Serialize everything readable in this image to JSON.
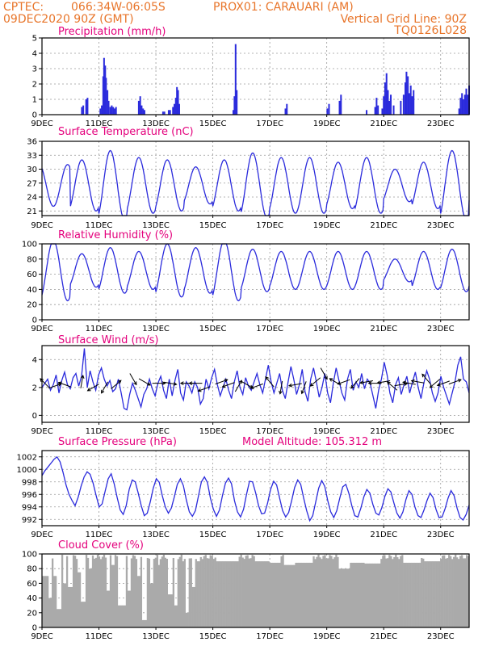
{
  "header": {
    "line1_left": "CPTEC:",
    "line1_coords": "066:34W-06:05S",
    "line1_point": "PROX01: CARAUARI (AM)",
    "line2_left": "09DEC2020 90Z (GMT)",
    "line2_right": "Vertical Grid Line: 90Z",
    "line3_right": "TQ0126L028"
  },
  "colors": {
    "header": "#e8752a",
    "title": "#e4007c",
    "series": "#2b2bdc",
    "cloud": "#aaaaaa",
    "grid": "#9a9a9a"
  },
  "x_axis": {
    "labels": [
      "9DEC",
      "11DEC",
      "13DEC",
      "15DEC",
      "17DEC",
      "19DEC",
      "21DEC",
      "23DEC"
    ],
    "label_days": [
      0,
      2,
      4,
      6,
      8,
      10,
      12,
      14
    ],
    "range_days": [
      0,
      15
    ]
  },
  "chart_data": [
    {
      "id": "precip",
      "type": "bar",
      "title": "Precipitation (mm/h)",
      "ylim": [
        0,
        5
      ],
      "yticks": [
        0,
        1,
        2,
        3,
        4,
        5
      ],
      "bars": [
        [
          1.4,
          0.5
        ],
        [
          1.45,
          0.6
        ],
        [
          1.55,
          1.0
        ],
        [
          1.6,
          1.1
        ],
        [
          2.05,
          0.4
        ],
        [
          2.1,
          0.6
        ],
        [
          2.15,
          2.5
        ],
        [
          2.18,
          3.7
        ],
        [
          2.22,
          3.2
        ],
        [
          2.25,
          2.4
        ],
        [
          2.3,
          1.6
        ],
        [
          2.34,
          0.9
        ],
        [
          2.4,
          0.5
        ],
        [
          2.45,
          0.6
        ],
        [
          2.5,
          0.5
        ],
        [
          2.55,
          0.4
        ],
        [
          2.6,
          0.5
        ],
        [
          3.4,
          0.9
        ],
        [
          3.45,
          1.2
        ],
        [
          3.5,
          0.6
        ],
        [
          3.55,
          0.4
        ],
        [
          3.6,
          0.3
        ],
        [
          4.25,
          0.2
        ],
        [
          4.3,
          0.2
        ],
        [
          4.45,
          0.3
        ],
        [
          4.5,
          0.3
        ],
        [
          4.6,
          0.5
        ],
        [
          4.65,
          0.7
        ],
        [
          4.7,
          1.1
        ],
        [
          4.74,
          1.8
        ],
        [
          4.78,
          1.6
        ],
        [
          4.82,
          0.7
        ],
        [
          6.72,
          0.3
        ],
        [
          6.76,
          1.2
        ],
        [
          6.8,
          4.6
        ],
        [
          6.84,
          1.6
        ],
        [
          8.55,
          0.4
        ],
        [
          8.6,
          0.7
        ],
        [
          10.02,
          0.4
        ],
        [
          10.08,
          0.7
        ],
        [
          10.45,
          0.9
        ],
        [
          10.5,
          1.3
        ],
        [
          11.4,
          0.3
        ],
        [
          11.7,
          0.5
        ],
        [
          11.75,
          1.1
        ],
        [
          11.8,
          0.6
        ],
        [
          11.95,
          0.4
        ],
        [
          12.0,
          1.2
        ],
        [
          12.05,
          2.1
        ],
        [
          12.1,
          2.7
        ],
        [
          12.15,
          1.6
        ],
        [
          12.2,
          0.9
        ],
        [
          12.25,
          1.3
        ],
        [
          12.35,
          0.6
        ],
        [
          12.6,
          0.9
        ],
        [
          12.7,
          1.3
        ],
        [
          12.76,
          2.1
        ],
        [
          12.8,
          2.8
        ],
        [
          12.85,
          2.5
        ],
        [
          12.9,
          1.4
        ],
        [
          12.95,
          1.9
        ],
        [
          13.0,
          1.2
        ],
        [
          13.05,
          1.6
        ],
        [
          14.65,
          0.4
        ],
        [
          14.7,
          1.1
        ],
        [
          14.75,
          1.4
        ],
        [
          14.8,
          1.0
        ],
        [
          14.85,
          1.3
        ],
        [
          14.9,
          1.7
        ],
        [
          14.95,
          1.3
        ],
        [
          15.0,
          1.9
        ]
      ]
    },
    {
      "id": "temp",
      "type": "line",
      "title": "Surface Temperature (nC)",
      "ylim": [
        20,
        36
      ],
      "yticks": [
        21,
        24,
        27,
        30,
        33,
        36
      ],
      "base": 26.5,
      "amps": [
        -4.5,
        5.5,
        7.5,
        6.0,
        5.5,
        4.0,
        5.5,
        7.0,
        6.0,
        6.0,
        5.0,
        6.0,
        3.5,
        5.0,
        7.5,
        4.0
      ]
    },
    {
      "id": "humid",
      "type": "line",
      "title": "Relative Humidity (%)",
      "ylim": [
        0,
        100
      ],
      "yticks": [
        0,
        20,
        40,
        60,
        80,
        100
      ],
      "base": 65,
      "amps": [
        40,
        22,
        30,
        25,
        35,
        30,
        40,
        28,
        25,
        25,
        25,
        25,
        15,
        25,
        28,
        25
      ]
    },
    {
      "id": "wind",
      "type": "line",
      "title": "Surface Wind (m/s)",
      "ylim": [
        -0.5,
        5
      ],
      "yticks": [
        0,
        2,
        4
      ],
      "values": [
        2.0,
        2.3,
        2.6,
        1.8,
        2.2,
        2.9,
        1.6,
        2.5,
        3.1,
        2.2,
        1.9,
        2.7,
        3.0,
        2.1,
        2.8,
        4.8,
        2.0,
        3.2,
        2.4,
        1.8,
        2.9,
        3.4,
        2.6,
        2.1,
        2.5,
        1.7,
        1.9,
        2.6,
        1.6,
        0.5,
        0.4,
        1.5,
        2.3,
        1.8,
        1.2,
        0.6,
        1.5,
        1.9,
        2.6,
        1.9,
        1.4,
        2.3,
        2.8,
        1.8,
        1.2,
        2.6,
        1.4,
        2.5,
        3.3,
        1.6,
        1.1,
        2.4,
        2.1,
        1.6,
        2.4,
        2.0,
        0.8,
        1.2,
        2.6,
        1.9,
        2.7,
        3.3,
        2.2,
        1.4,
        2.0,
        2.6,
        1.8,
        1.2,
        2.4,
        3.2,
        2.0,
        1.5,
        2.7,
        2.1,
        1.8,
        2.4,
        3.0,
        2.2,
        1.6,
        2.6,
        3.6,
        2.4,
        1.6,
        2.3,
        3.0,
        1.8,
        1.2,
        2.4,
        3.5,
        2.6,
        1.5,
        2.2,
        3.3,
        1.7,
        1.0,
        2.6,
        3.4,
        2.4,
        1.3,
        2.0,
        3.0,
        1.6,
        0.9,
        2.3,
        3.4,
        2.5,
        1.6,
        1.1,
        2.6,
        3.3,
        1.8,
        2.4,
        2.0,
        3.0,
        1.9,
        2.6,
        2.3,
        1.4,
        0.5,
        1.8,
        2.6,
        3.8,
        2.9,
        1.6,
        0.9,
        2.2,
        2.7,
        1.5,
        2.2,
        2.8,
        1.6,
        2.4,
        3.1,
        2.0,
        1.2,
        2.3,
        3.2,
        2.6,
        1.6,
        1.0,
        1.6,
        2.8,
        2.0,
        1.4,
        0.8,
        1.6,
        2.4,
        3.6,
        4.2,
        2.6,
        2.4,
        1.6
      ],
      "arrows": [
        [
          0.1,
          2.3,
          135
        ],
        [
          0.45,
          2.1,
          20
        ],
        [
          0.8,
          2.2,
          160
        ],
        [
          1.4,
          2.4,
          80
        ],
        [
          1.8,
          2.0,
          210
        ],
        [
          2.2,
          2.0,
          240
        ],
        [
          2.6,
          2.2,
          40
        ],
        [
          3.2,
          2.6,
          300
        ],
        [
          3.6,
          2.4,
          330
        ],
        [
          4.1,
          2.3,
          0
        ],
        [
          4.5,
          2.3,
          350
        ],
        [
          5.1,
          2.3,
          180
        ],
        [
          5.4,
          2.3,
          180
        ],
        [
          5.7,
          1.9,
          200
        ],
        [
          6.3,
          2.4,
          20
        ],
        [
          6.55,
          2.2,
          200
        ],
        [
          6.9,
          2.1,
          60
        ],
        [
          7.2,
          2.2,
          330
        ],
        [
          7.55,
          2.1,
          200
        ],
        [
          8.0,
          2.4,
          130
        ],
        [
          8.4,
          2.0,
          260
        ],
        [
          8.9,
          2.2,
          190
        ],
        [
          9.2,
          2.0,
          250
        ],
        [
          9.6,
          2.4,
          220
        ],
        [
          9.9,
          3.0,
          300
        ],
        [
          10.3,
          2.4,
          150
        ],
        [
          10.6,
          2.4,
          200
        ],
        [
          11.0,
          2.3,
          230
        ],
        [
          11.4,
          2.4,
          190
        ],
        [
          11.7,
          2.3,
          180
        ],
        [
          12.0,
          2.4,
          190
        ],
        [
          12.3,
          2.1,
          140
        ],
        [
          12.6,
          2.2,
          10
        ],
        [
          12.9,
          2.3,
          170
        ],
        [
          13.2,
          2.4,
          170
        ],
        [
          13.5,
          2.6,
          130
        ],
        [
          13.8,
          2.3,
          220
        ],
        [
          14.1,
          2.3,
          200
        ],
        [
          14.5,
          2.4,
          20
        ]
      ]
    },
    {
      "id": "press",
      "type": "line",
      "title": "Surface Pressure (hPa)",
      "extra_label": "Model Altitude: 105.312 m",
      "ylim": [
        991,
        1003
      ],
      "yticks": [
        992,
        994,
        996,
        998,
        1000,
        1002
      ],
      "values": [
        999.0,
        999.8,
        1000.4,
        1001.0,
        1001.6,
        1002.0,
        1001.2,
        999.5,
        997.5,
        996.0,
        995.0,
        994.2,
        995.5,
        997.3,
        998.8,
        999.6,
        999.2,
        997.8,
        995.8,
        994.0,
        994.5,
        996.5,
        998.5,
        999.3,
        997.7,
        995.5,
        993.5,
        992.8,
        994.2,
        996.8,
        998.3,
        998.0,
        996.2,
        994.2,
        992.6,
        993.0,
        994.8,
        997.0,
        998.5,
        997.9,
        995.8,
        994.0,
        993.0,
        993.8,
        995.6,
        997.6,
        998.5,
        997.4,
        995.1,
        993.2,
        992.5,
        993.4,
        995.7,
        998.0,
        998.8,
        997.9,
        995.4,
        993.6,
        992.5,
        993.5,
        995.8,
        997.8,
        998.6,
        997.7,
        995.0,
        993.2,
        992.4,
        993.6,
        996.0,
        998.1,
        998.0,
        996.3,
        994.2,
        992.9,
        993.0,
        994.6,
        996.8,
        998.1,
        997.5,
        995.4,
        993.4,
        992.4,
        993.1,
        995.0,
        997.1,
        998.3,
        997.6,
        995.4,
        993.4,
        991.8,
        992.6,
        994.8,
        997.0,
        998.2,
        997.3,
        995.0,
        993.2,
        992.3,
        993.4,
        995.4,
        997.2,
        997.6,
        996.2,
        994.2,
        992.6,
        992.4,
        993.8,
        995.6,
        996.8,
        996.2,
        994.4,
        993.0,
        992.7,
        993.9,
        995.7,
        996.9,
        996.4,
        994.6,
        993.0,
        992.2,
        993.2,
        995.2,
        996.6,
        996.0,
        994.0,
        992.6,
        992.3,
        993.5,
        995.0,
        996.2,
        995.5,
        993.6,
        992.3,
        992.4,
        993.7,
        995.4,
        996.6,
        995.8,
        993.8,
        992.3,
        991.9,
        992.8,
        994.3
      ]
    },
    {
      "id": "cloud",
      "type": "area",
      "title": "Cloud Cover (%)",
      "ylim": [
        0,
        100
      ],
      "yticks": [
        0,
        20,
        40,
        60,
        80,
        100
      ],
      "base_level": 96,
      "dips": [
        [
          0.05,
          0.15,
          70
        ],
        [
          0.3,
          0.05,
          40
        ],
        [
          0.45,
          0.05,
          70
        ],
        [
          0.6,
          0.1,
          25
        ],
        [
          0.8,
          0.05,
          60
        ],
        [
          1.0,
          0.1,
          55
        ],
        [
          1.3,
          0.05,
          75
        ],
        [
          1.45,
          0.1,
          35
        ],
        [
          1.7,
          0.05,
          80
        ],
        [
          2.3,
          0.05,
          50
        ],
        [
          2.5,
          0.05,
          85
        ],
        [
          2.8,
          0.15,
          30
        ],
        [
          3.05,
          0.05,
          50
        ],
        [
          3.4,
          0.05,
          70
        ],
        [
          3.6,
          0.1,
          10
        ],
        [
          3.85,
          0.05,
          60
        ],
        [
          4.1,
          0.05,
          85
        ],
        [
          4.5,
          0.1,
          45
        ],
        [
          4.7,
          0.05,
          30
        ],
        [
          4.95,
          0.05,
          90
        ],
        [
          5.1,
          0.05,
          20
        ],
        [
          5.3,
          0.05,
          55
        ],
        [
          5.5,
          0.05,
          90
        ],
        [
          6.5,
          0.4,
          90
        ],
        [
          7.8,
          0.3,
          90
        ],
        [
          8.2,
          0.2,
          88
        ],
        [
          8.7,
          0.2,
          85
        ],
        [
          9.2,
          0.3,
          88
        ],
        [
          10.6,
          0.2,
          80
        ],
        [
          11.0,
          0.3,
          88
        ],
        [
          11.6,
          0.3,
          87
        ],
        [
          13.0,
          0.3,
          88
        ],
        [
          13.7,
          0.3,
          90
        ]
      ]
    }
  ]
}
